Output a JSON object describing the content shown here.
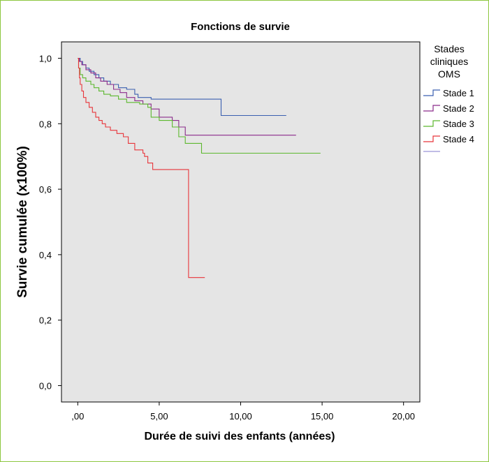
{
  "chart_data": {
    "type": "line",
    "step": true,
    "title": "Fonctions de survie",
    "xlabel": "Durée de suivi des enfants (années)",
    "ylabel": "Survie cumulée (x100%)",
    "xlim": [
      -1,
      21
    ],
    "ylim": [
      -0.05,
      1.05
    ],
    "xticks": [
      0,
      5,
      10,
      15,
      20
    ],
    "xtick_labels": [
      ",00",
      "5,00",
      "10,00",
      "15,00",
      "20,00"
    ],
    "yticks": [
      0,
      0.2,
      0.4,
      0.6,
      0.8,
      1.0
    ],
    "ytick_labels": [
      "0,0",
      "0,2",
      "0,4",
      "0,6",
      "0,8",
      "1,0"
    ],
    "grid": false,
    "plot_background": "#e5e5e5",
    "legend_title": [
      "Stades",
      "cliniques",
      "OMS"
    ],
    "legend_position": "right",
    "series": [
      {
        "name": "Stade 1",
        "color": "#3a5fb0",
        "x": [
          0,
          0.15,
          0.3,
          0.5,
          0.7,
          1.0,
          1.3,
          1.6,
          2.0,
          2.5,
          3.0,
          3.5,
          3.7,
          4.5,
          8.8,
          12.8
        ],
        "y": [
          1.0,
          0.99,
          0.98,
          0.97,
          0.96,
          0.95,
          0.94,
          0.93,
          0.92,
          0.91,
          0.905,
          0.89,
          0.88,
          0.875,
          0.825,
          0.825
        ]
      },
      {
        "name": "Stade 2",
        "color": "#8a2a8a",
        "x": [
          0,
          0.1,
          0.25,
          0.5,
          0.8,
          1.1,
          1.4,
          1.8,
          2.2,
          2.6,
          3.0,
          3.5,
          4.0,
          4.5,
          5.0,
          5.8,
          6.2,
          6.6,
          13.4
        ],
        "y": [
          1.0,
          0.99,
          0.98,
          0.965,
          0.955,
          0.94,
          0.93,
          0.92,
          0.905,
          0.895,
          0.88,
          0.87,
          0.86,
          0.845,
          0.82,
          0.81,
          0.79,
          0.765,
          0.765
        ]
      },
      {
        "name": "Stade 3",
        "color": "#5cb82e",
        "x": [
          0,
          0.05,
          0.15,
          0.3,
          0.5,
          0.8,
          1.0,
          1.3,
          1.6,
          2.0,
          2.5,
          3.0,
          3.8,
          4.3,
          4.5,
          5.0,
          5.8,
          6.2,
          6.6,
          7.6,
          14.9
        ],
        "y": [
          1.0,
          0.97,
          0.95,
          0.94,
          0.93,
          0.92,
          0.91,
          0.9,
          0.89,
          0.885,
          0.875,
          0.865,
          0.86,
          0.85,
          0.82,
          0.81,
          0.79,
          0.76,
          0.74,
          0.71,
          0.71
        ]
      },
      {
        "name": "Stade 4",
        "color": "#e8353a",
        "x": [
          0,
          0.05,
          0.1,
          0.15,
          0.25,
          0.35,
          0.5,
          0.7,
          0.9,
          1.1,
          1.3,
          1.5,
          1.7,
          2.0,
          2.4,
          2.8,
          3.1,
          3.5,
          4.0,
          4.1,
          4.3,
          4.6,
          6.8,
          7.8
        ],
        "y": [
          1.0,
          0.97,
          0.94,
          0.92,
          0.9,
          0.88,
          0.865,
          0.85,
          0.835,
          0.82,
          0.81,
          0.8,
          0.79,
          0.78,
          0.77,
          0.76,
          0.74,
          0.72,
          0.71,
          0.7,
          0.68,
          0.66,
          0.33,
          0.33
        ]
      }
    ],
    "extra_legend_color": "#9a93d8"
  }
}
